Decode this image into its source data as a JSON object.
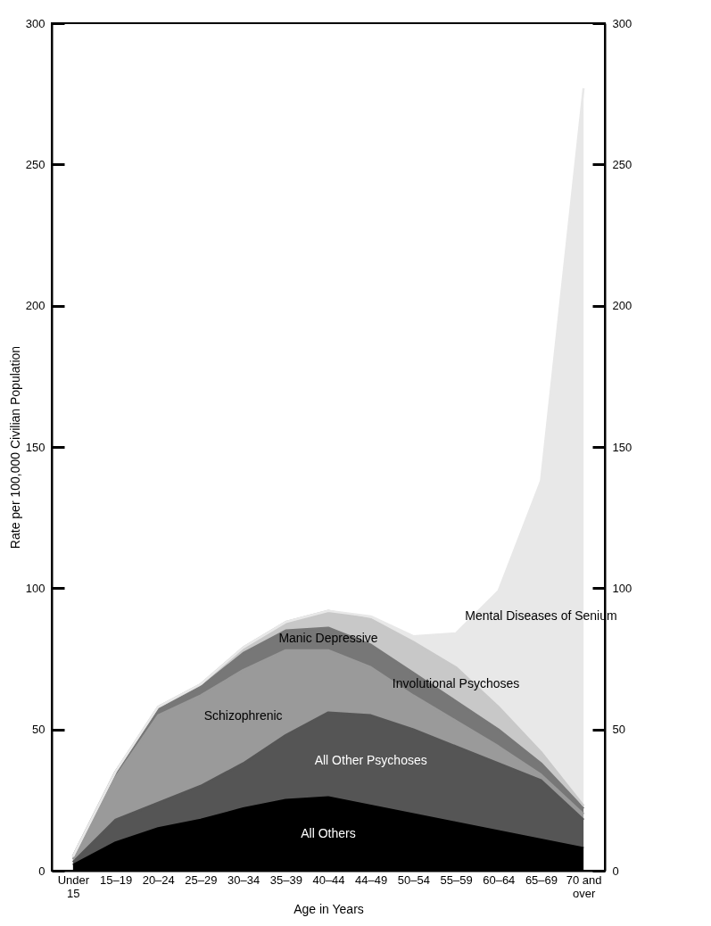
{
  "chart_data": {
    "type": "area",
    "stacked": true,
    "xlabel": "Age in Years",
    "ylabel": "Rate per 100,000 Civilian Population",
    "categories": [
      "Under 15",
      "15–19",
      "20–24",
      "25–29",
      "30–34",
      "35–39",
      "40–44",
      "44–49",
      "50–54",
      "55–59",
      "60–64",
      "65–69",
      "70 and over"
    ],
    "series": [
      {
        "name": "All Others",
        "color": "#000000",
        "values": [
          2,
          10,
          15,
          18,
          22,
          25,
          26,
          23,
          20,
          17,
          14,
          11,
          8
        ]
      },
      {
        "name": "All Other Psychoses",
        "color": "#555555",
        "values": [
          1,
          8,
          9,
          12,
          16,
          23,
          30,
          32,
          30,
          27,
          24,
          21,
          10
        ]
      },
      {
        "name": "Schizophrenic",
        "color": "#9a9a9a",
        "values": [
          1,
          15,
          31,
          32,
          33,
          30,
          22,
          17,
          12,
          9,
          6,
          2,
          2
        ]
      },
      {
        "name": "Manic Depressive",
        "color": "#777777",
        "values": [
          1,
          2,
          2,
          3,
          6,
          7,
          8,
          8,
          8,
          7,
          6,
          4,
          2
        ]
      },
      {
        "name": "Involutional Psychoses",
        "color": "#c8c8c8",
        "values": [
          0,
          0,
          1,
          1,
          2,
          3,
          6,
          9,
          11,
          12,
          8,
          4,
          1
        ]
      },
      {
        "name": "Mental Diseases of Senium",
        "color": "#e8e8e8",
        "values": [
          0,
          0,
          0,
          0,
          0,
          0,
          0,
          1,
          2,
          12,
          41,
          96,
          254
        ]
      }
    ],
    "ylim": [
      0,
      300
    ],
    "yticks": [
      0,
      50,
      100,
      150,
      200,
      250,
      300
    ],
    "y2lim": [
      0,
      300
    ],
    "y2ticks": [
      0,
      50,
      100,
      150,
      200,
      250,
      300
    ],
    "grid": false,
    "legend": false
  }
}
